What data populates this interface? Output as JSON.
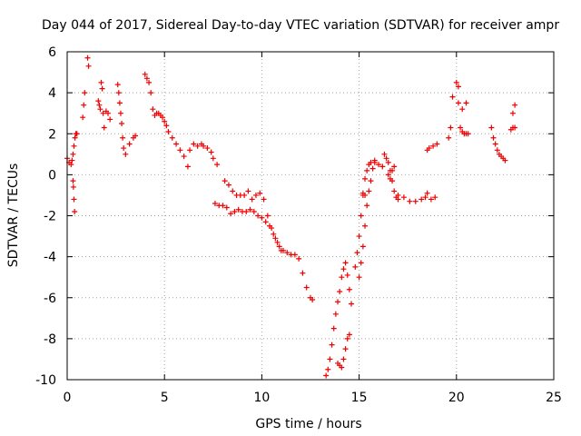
{
  "chart_data": {
    "type": "scatter",
    "title": "Day 044 of 2017, Sidereal Day-to-day VTEC variation (SDTVAR) for receiver ampr",
    "xlabel": "GPS time / hours",
    "ylabel": "SDTVAR / TECUs",
    "xlim": [
      0,
      25
    ],
    "ylim": [
      -10,
      6
    ],
    "xticks": [
      0,
      5,
      10,
      15,
      20,
      25
    ],
    "yticks": [
      -10,
      -8,
      -6,
      -4,
      -2,
      0,
      2,
      4,
      6
    ],
    "grid": true,
    "marker": "+",
    "color": "#ee0000",
    "series": [
      {
        "name": "SDTVAR",
        "x": [
          0.0,
          0.1,
          0.2,
          0.25,
          0.3,
          0.35,
          0.4,
          0.45,
          0.5,
          0.3,
          0.32,
          0.35,
          0.38,
          0.8,
          0.85,
          0.9,
          1.05,
          1.1,
          1.6,
          1.65,
          1.7,
          1.75,
          1.8,
          1.85,
          1.9,
          2.0,
          2.1,
          2.2,
          2.6,
          2.65,
          2.7,
          2.75,
          2.8,
          2.85,
          2.9,
          3.0,
          3.2,
          3.4,
          3.5,
          4.0,
          4.1,
          4.2,
          4.3,
          4.4,
          4.5,
          4.6,
          4.7,
          4.8,
          4.9,
          5.0,
          5.1,
          5.2,
          5.4,
          5.6,
          5.8,
          6.0,
          6.2,
          6.3,
          6.5,
          6.7,
          6.9,
          7.0,
          7.2,
          7.4,
          7.5,
          7.7,
          7.6,
          7.8,
          8.0,
          8.2,
          8.4,
          8.6,
          8.8,
          9.0,
          9.2,
          9.4,
          9.6,
          9.8,
          10.0,
          10.2,
          10.4,
          10.6,
          10.8,
          11.0,
          8.1,
          8.3,
          8.5,
          8.7,
          8.9,
          9.1,
          9.3,
          9.5,
          9.7,
          9.9,
          10.1,
          10.3,
          10.5,
          10.7,
          10.9,
          11.1,
          11.3,
          11.5,
          11.7,
          11.9,
          12.1,
          12.3,
          12.5,
          12.6,
          13.3,
          13.4,
          13.5,
          13.6,
          13.7,
          13.8,
          13.9,
          14.0,
          14.1,
          14.2,
          14.3,
          14.4,
          14.5,
          14.6,
          13.9,
          14.0,
          14.1,
          14.2,
          14.3,
          14.4,
          14.5,
          14.8,
          14.9,
          15.0,
          15.1,
          15.2,
          15.3,
          15.4,
          15.5,
          15.6,
          15.8,
          16.0,
          16.2,
          15.0,
          15.1,
          15.2,
          15.3,
          15.4,
          15.5,
          15.6,
          15.7,
          15.8,
          15.3,
          15.2,
          16.3,
          16.4,
          16.5,
          16.6,
          16.7,
          16.8,
          16.9,
          17.0,
          16.5,
          16.6,
          16.7,
          16.8,
          17.0,
          17.3,
          17.6,
          17.9,
          18.2,
          18.4,
          18.5,
          18.7,
          18.9,
          18.5,
          18.6,
          18.8,
          19.0,
          19.6,
          19.7,
          19.8,
          20.0,
          20.1,
          20.2,
          20.3,
          20.4,
          20.5,
          20.6,
          20.1,
          20.3,
          20.5,
          21.8,
          21.9,
          22.0,
          22.1,
          22.2,
          22.3,
          22.4,
          22.5,
          22.8,
          22.9,
          23.0,
          22.9,
          23.0
        ]
      },
      {
        "name": "SDTVAR_y",
        "y": [
          0.8,
          0.6,
          0.5,
          0.7,
          1.0,
          1.4,
          1.8,
          2.0,
          2.0,
          -0.3,
          -0.6,
          -1.2,
          -1.8,
          2.8,
          3.4,
          4.0,
          5.7,
          5.3,
          3.6,
          3.4,
          3.2,
          4.5,
          4.2,
          3.0,
          2.3,
          3.1,
          3.0,
          2.7,
          4.4,
          4.0,
          3.5,
          3.0,
          2.5,
          1.8,
          1.3,
          1.0,
          1.5,
          1.8,
          1.9,
          4.9,
          4.7,
          4.5,
          4.0,
          3.2,
          2.9,
          3.0,
          3.0,
          2.9,
          2.8,
          2.6,
          2.4,
          2.1,
          1.8,
          1.5,
          1.2,
          0.9,
          0.4,
          1.2,
          1.5,
          1.4,
          1.5,
          1.4,
          1.3,
          1.1,
          0.8,
          0.5,
          -1.4,
          -1.5,
          -1.5,
          -1.6,
          -1.9,
          -1.8,
          -1.7,
          -1.8,
          -1.8,
          -1.7,
          -1.8,
          -2.0,
          -2.1,
          -2.3,
          -2.5,
          -2.9,
          -3.3,
          -3.7,
          -0.3,
          -0.5,
          -0.8,
          -1.0,
          -1.0,
          -1.0,
          -0.8,
          -1.2,
          -1.0,
          -0.9,
          -1.2,
          -2.0,
          -2.6,
          -3.1,
          -3.5,
          -3.7,
          -3.8,
          -3.9,
          -3.9,
          -4.1,
          -4.8,
          -5.5,
          -6.0,
          -6.1,
          -9.8,
          -9.5,
          -9.0,
          -8.3,
          -7.5,
          -6.8,
          -6.2,
          -5.7,
          -5.0,
          -4.6,
          -4.3,
          -4.9,
          -5.6,
          -6.3,
          -9.2,
          -9.3,
          -9.4,
          -9.0,
          -8.5,
          -8.0,
          -7.8,
          -4.5,
          -3.8,
          -3.0,
          -2.0,
          -1.0,
          -0.2,
          0.2,
          0.5,
          0.6,
          0.6,
          0.5,
          0.4,
          -5.0,
          -4.3,
          -3.5,
          -2.5,
          -1.5,
          -0.8,
          -0.3,
          0.3,
          0.7,
          -1.0,
          -0.9,
          1.0,
          0.8,
          0.6,
          0.2,
          -0.3,
          -0.8,
          -1.1,
          -1.2,
          0.0,
          -0.2,
          0.2,
          0.4,
          -1.0,
          -1.1,
          -1.3,
          -1.3,
          -1.2,
          -1.1,
          -0.9,
          -1.2,
          -1.1,
          1.2,
          1.3,
          1.4,
          1.5,
          1.8,
          2.3,
          3.8,
          4.5,
          4.3,
          2.3,
          2.1,
          2.0,
          2.0,
          2.0,
          3.5,
          3.2,
          3.5,
          2.3,
          1.8,
          1.5,
          1.2,
          1.0,
          0.9,
          0.8,
          0.7,
          2.2,
          2.3,
          2.3,
          3.0,
          3.4
        ]
      }
    ]
  }
}
